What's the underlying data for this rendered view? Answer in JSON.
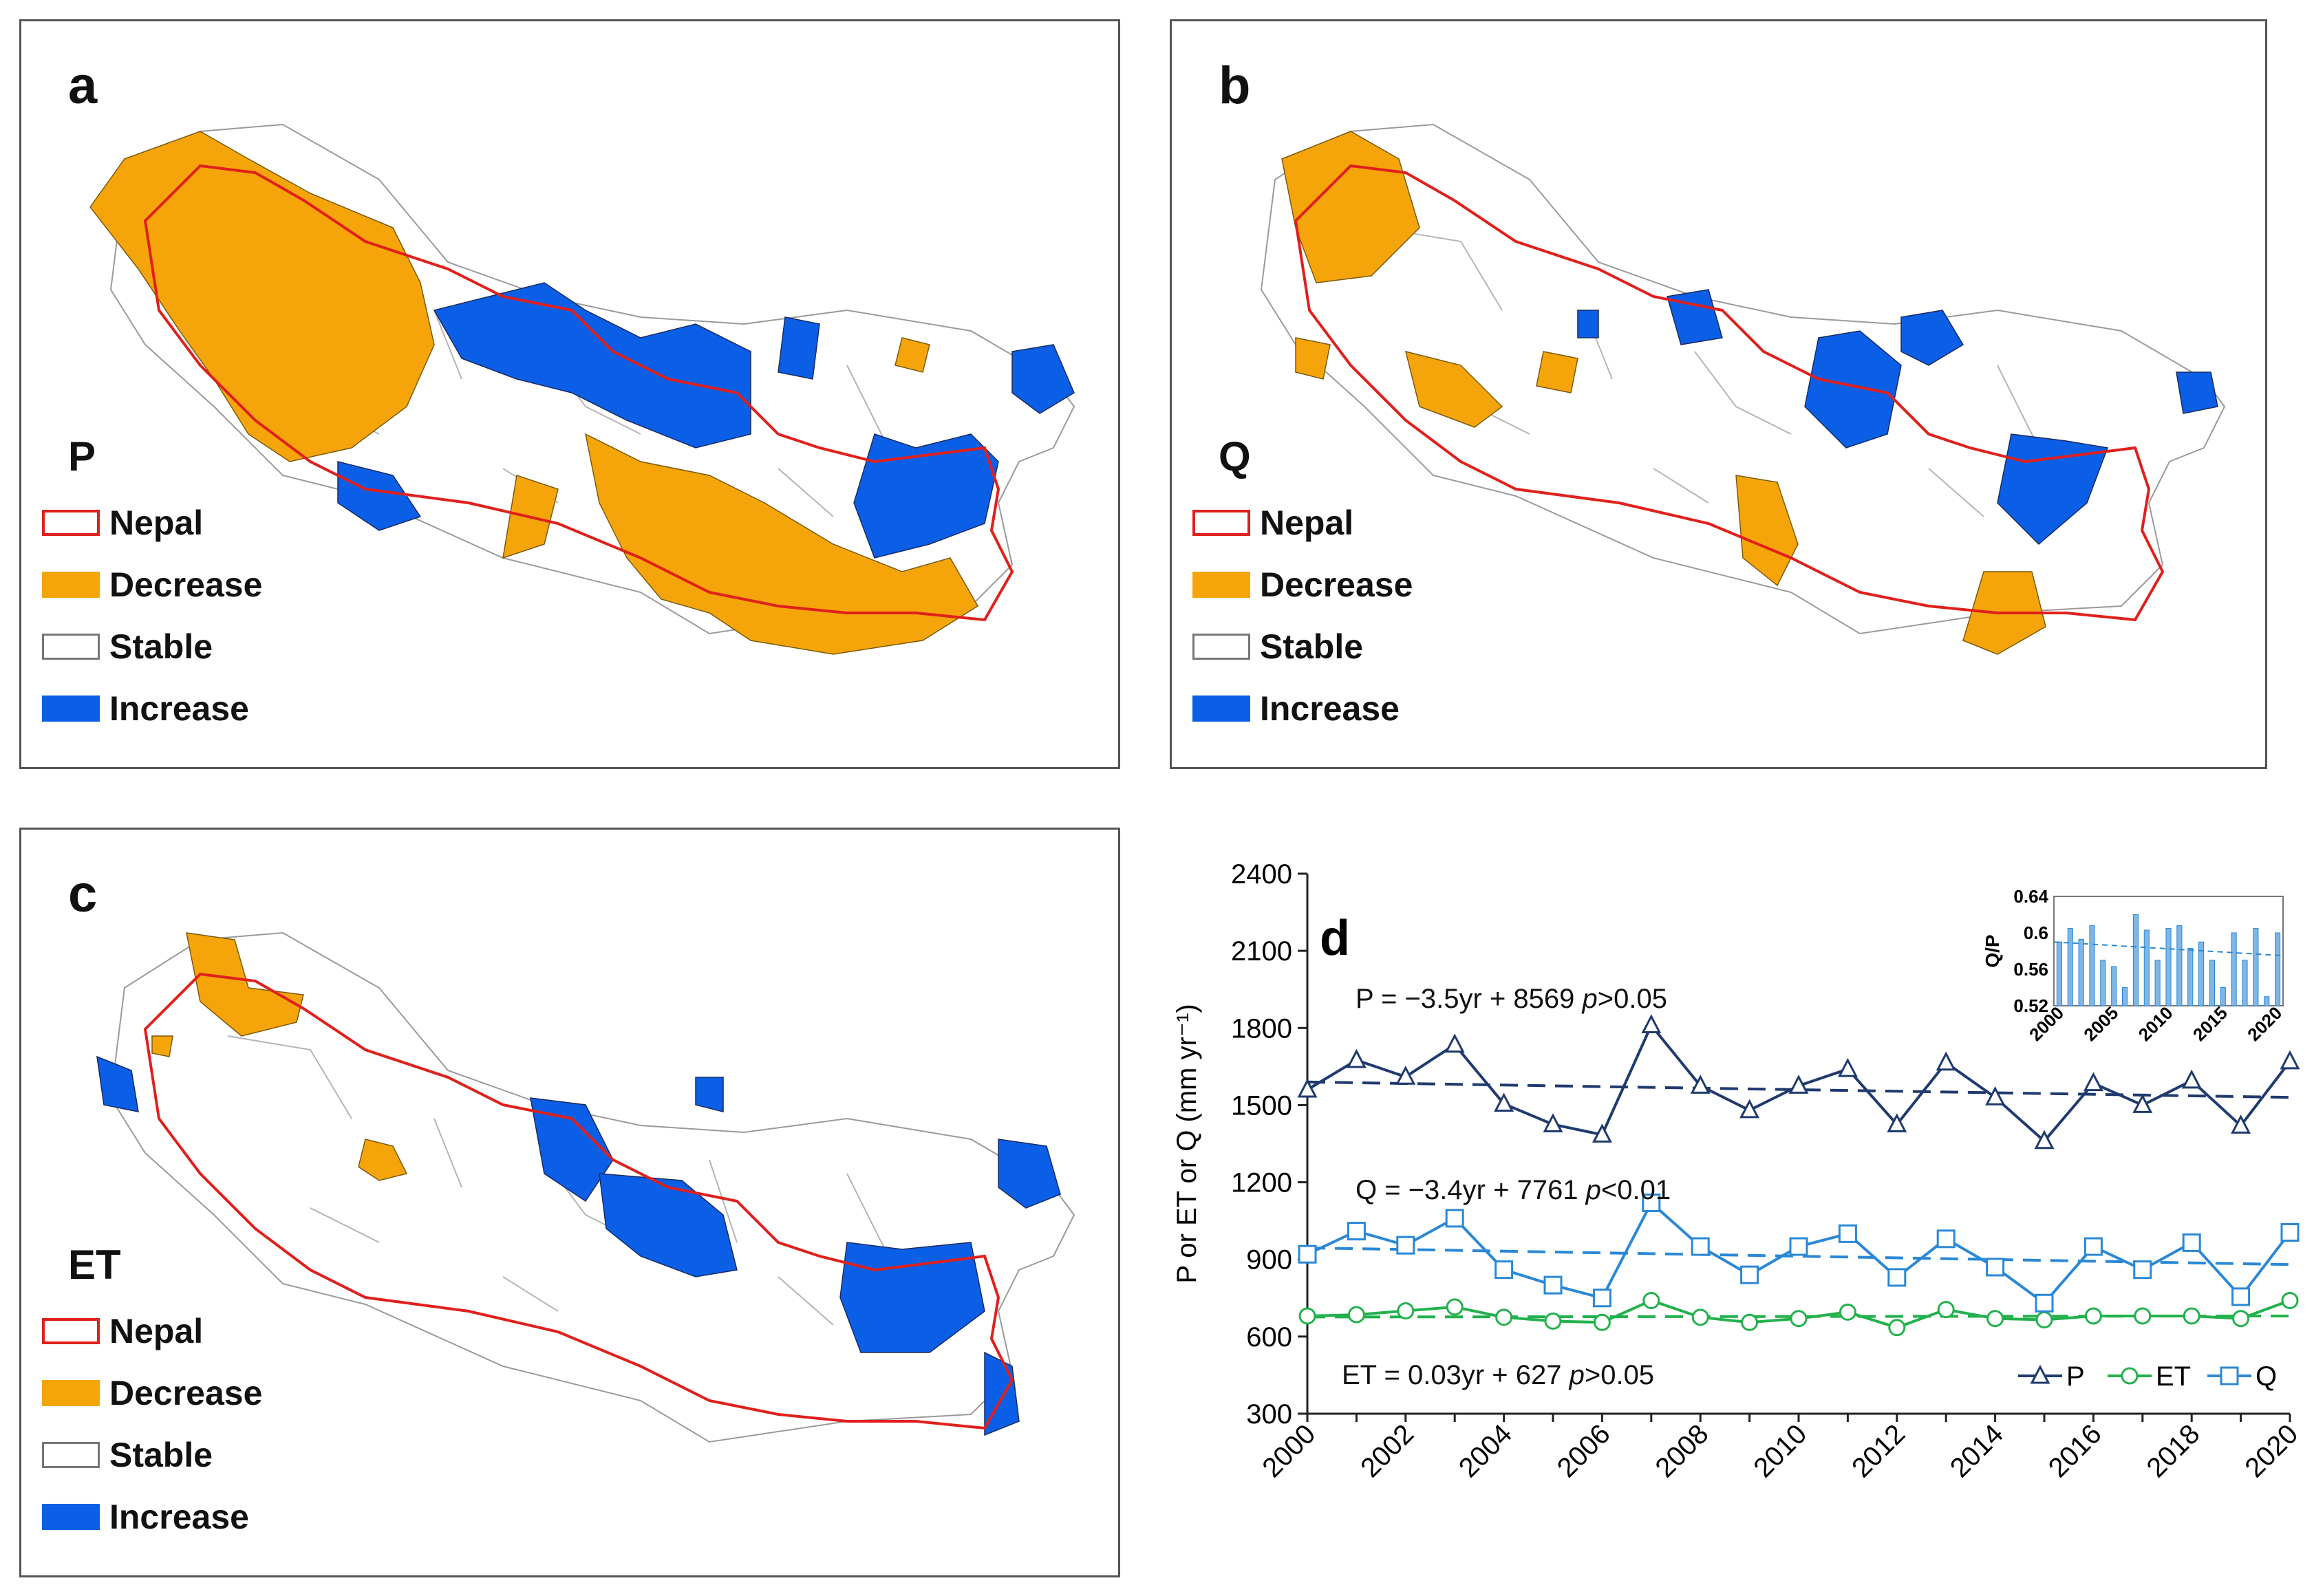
{
  "panels": {
    "a": {
      "letter": "a",
      "variable": "P"
    },
    "b": {
      "letter": "b",
      "variable": "Q"
    },
    "c": {
      "letter": "c",
      "variable": "ET"
    },
    "d": {
      "letter": "d"
    }
  },
  "legend": {
    "nepal": "Nepal",
    "decrease": "Decrease",
    "stable": "Stable",
    "increase": "Increase"
  },
  "colors": {
    "decrease": "#f5a50a",
    "increase": "#0a5fe6",
    "nepal_border": "#e0201c",
    "stable_border": "#8a8a8a",
    "P": "#1f3a6e",
    "ET": "#22b14c",
    "Q": "#2a88d6"
  },
  "chart_data": [
    {
      "type": "line",
      "title": "",
      "ylabel": "P or ET or Q (mm yr⁻¹)",
      "xlabel": "",
      "ylim": [
        300,
        2400
      ],
      "yticks": [
        300,
        600,
        900,
        1200,
        1500,
        1800,
        2100,
        2400
      ],
      "xticks": [
        2000,
        2002,
        2004,
        2006,
        2008,
        2010,
        2012,
        2014,
        2016,
        2018,
        2020
      ],
      "x": [
        2000,
        2001,
        2002,
        2003,
        2004,
        2005,
        2006,
        2007,
        2008,
        2009,
        2010,
        2011,
        2012,
        2013,
        2014,
        2015,
        2016,
        2017,
        2018,
        2019,
        2020
      ],
      "series": [
        {
          "name": "P",
          "marker": "triangle",
          "values": [
            1560,
            1675,
            1610,
            1735,
            1505,
            1425,
            1385,
            1810,
            1575,
            1480,
            1575,
            1640,
            1425,
            1665,
            1530,
            1360,
            1585,
            1500,
            1595,
            1420,
            1670
          ]
        },
        {
          "name": "ET",
          "marker": "circle",
          "values": [
            680,
            685,
            700,
            715,
            675,
            660,
            655,
            740,
            675,
            655,
            670,
            695,
            635,
            705,
            670,
            665,
            680,
            680,
            680,
            670,
            740
          ]
        },
        {
          "name": "Q",
          "marker": "square",
          "values": [
            920,
            1010,
            955,
            1060,
            860,
            800,
            750,
            1120,
            950,
            840,
            950,
            1000,
            830,
            980,
            870,
            730,
            950,
            860,
            965,
            755,
            1005
          ]
        }
      ],
      "trends": [
        {
          "series": "P",
          "start": 1590,
          "end": 1530,
          "label": "P = −3.5yr + 8569 ",
          "p_symbol": "p",
          "p_text": ">0.05"
        },
        {
          "series": "Q",
          "start": 945,
          "end": 880,
          "label": "Q = −3.4yr + 7761 ",
          "p_symbol": "p",
          "p_text": "<0.01"
        },
        {
          "series": "ET",
          "start": 676,
          "end": 680,
          "label": "ET = 0.03yr + 627 ",
          "p_symbol": "p",
          "p_text": ">0.05"
        }
      ],
      "legend": [
        "P",
        "ET",
        "Q"
      ]
    },
    {
      "type": "bar",
      "title": "",
      "ylabel": "Q/P",
      "ylim": [
        0.52,
        0.64
      ],
      "yticks": [
        "0.52",
        "0.56",
        "0.6",
        "0.64"
      ],
      "xticks": [
        "2000",
        "2005",
        "2010",
        "2015",
        "2020"
      ],
      "categories": [
        2000,
        2001,
        2002,
        2003,
        2004,
        2005,
        2006,
        2007,
        2008,
        2009,
        2010,
        2011,
        2012,
        2013,
        2014,
        2015,
        2016,
        2017,
        2018,
        2019,
        2020
      ],
      "values": [
        0.59,
        0.605,
        0.593,
        0.608,
        0.57,
        0.563,
        0.54,
        0.62,
        0.603,
        0.57,
        0.605,
        0.608,
        0.583,
        0.59,
        0.57,
        0.54,
        0.6,
        0.57,
        0.605,
        0.53,
        0.6
      ],
      "trend": [
        0.59,
        0.575
      ]
    }
  ]
}
